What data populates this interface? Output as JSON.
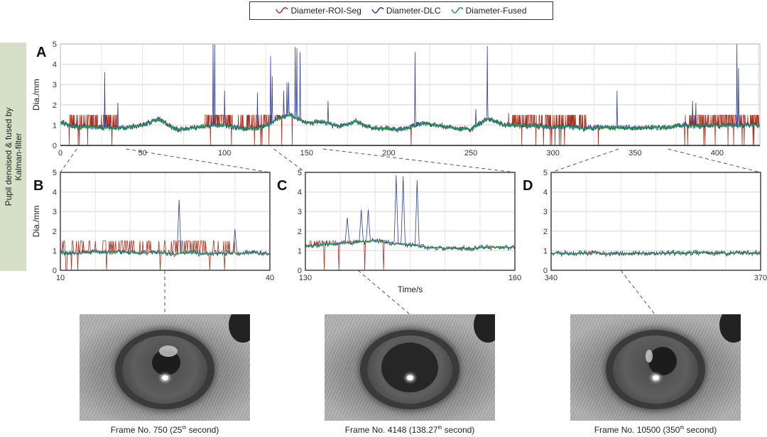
{
  "legend": [
    {
      "name": "Diameter-ROI-Seg",
      "color": "#a8321e"
    },
    {
      "name": "Diameter-DLC",
      "color": "#2b3f9a"
    },
    {
      "name": "Diameter-Fused",
      "color": "#1c9a48"
    }
  ],
  "sidebar_label_1": "Pupil denoised & fused by",
  "sidebar_label_2": "Kalman-filter",
  "chart_data": [
    {
      "panel": "A",
      "type": "line",
      "ylabel": "Dia./mm",
      "xlabel": "",
      "ylim": [
        0,
        5
      ],
      "xlim": [
        0,
        426
      ],
      "xticks": [
        0,
        50,
        100,
        150,
        200,
        250,
        300,
        350,
        400
      ],
      "yticks": [
        0,
        1,
        2,
        3,
        4,
        5
      ],
      "grid": true
    },
    {
      "panel": "B",
      "type": "line",
      "ylabel": "Dia./mm",
      "xlim": [
        10,
        40
      ],
      "ylim": [
        0,
        5
      ],
      "xticks": [
        10,
        40
      ],
      "yticks": [
        0,
        1,
        2,
        3,
        4,
        5
      ],
      "grid": true
    },
    {
      "panel": "C",
      "type": "line",
      "xlabel": "Time/s",
      "xlim": [
        130,
        160
      ],
      "ylim": [
        0,
        5
      ],
      "xticks": [
        130,
        160
      ],
      "grid": true
    },
    {
      "panel": "D",
      "type": "line",
      "xlim": [
        340,
        370
      ],
      "ylim": [
        0,
        5
      ],
      "xticks": [
        340,
        370
      ],
      "grid": true
    }
  ],
  "series_data": {
    "fused_baseline_every_10s": [
      1.1,
      0.9,
      0.9,
      0.85,
      0.9,
      1.0,
      1.3,
      0.8,
      0.85,
      0.95,
      1.0,
      0.85,
      0.8,
      1.2,
      1.5,
      1.1,
      1.2,
      0.9,
      1.2,
      0.85,
      0.85,
      0.8,
      1.1,
      1.0,
      0.85,
      0.8,
      1.3,
      1.0,
      1.0,
      0.95,
      0.9,
      0.95,
      0.85,
      0.9,
      0.9,
      0.85,
      0.9,
      0.9,
      1.0,
      0.95,
      1.0,
      1.0,
      1.0
    ],
    "roi_seg_noisy_ranges": [
      [
        5,
        35
      ],
      [
        88,
        105
      ],
      [
        108,
        140
      ],
      [
        275,
        320
      ],
      [
        380,
        426
      ]
    ],
    "roi_seg_high": 1.5,
    "dlc_spikes": [
      [
        27,
        3.6
      ],
      [
        35,
        2.1
      ],
      [
        93,
        5
      ],
      [
        94,
        5
      ],
      [
        100,
        2.7
      ],
      [
        120,
        2.6
      ],
      [
        128,
        4.4
      ],
      [
        129,
        3.4
      ],
      [
        136,
        2.7
      ],
      [
        138,
        3.1
      ],
      [
        139,
        3.1
      ],
      [
        143,
        4.85
      ],
      [
        144,
        4.8
      ],
      [
        146,
        4.6
      ],
      [
        163,
        2.2
      ],
      [
        216,
        4.6
      ],
      [
        253,
        1.8
      ],
      [
        260,
        4.9
      ],
      [
        339,
        2.7
      ],
      [
        385,
        2.2
      ],
      [
        387,
        2.1
      ],
      [
        412,
        5
      ],
      [
        413,
        3.8
      ]
    ]
  },
  "panels": {
    "A": "A",
    "B": "B",
    "C": "C",
    "D": "D"
  },
  "frames": [
    {
      "pre": "Frame No. 750 (25",
      "sup": "th",
      "post": " second)",
      "time": 25
    },
    {
      "pre": "Frame No. 4148 (138.27",
      "sup": "th",
      "post": " second)",
      "time": 138.27
    },
    {
      "pre": "Frame No. 10500 (350",
      "sup": "th",
      "post": " second)",
      "time": 350
    }
  ]
}
